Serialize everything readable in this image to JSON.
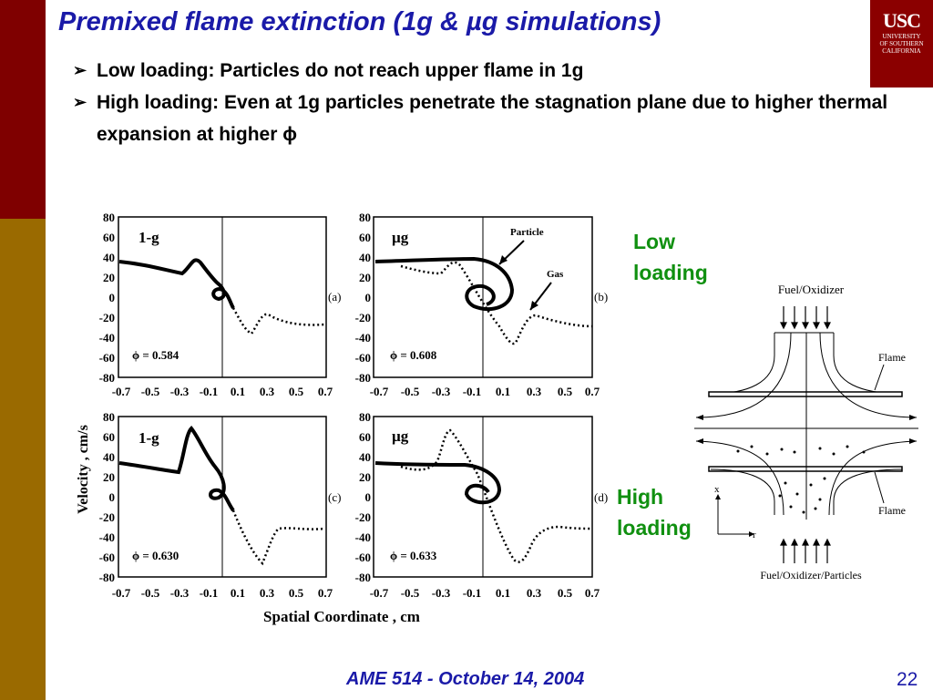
{
  "slide": {
    "title": "Premixed flame extinction (1g & µg simulations)",
    "bullets": [
      "Low loading: Particles do not reach upper flame in 1g",
      "High loading: Even at 1g particles penetrate the stagnation plane due to higher thermal expansion at higher ϕ"
    ],
    "low_loading": "Low loading",
    "high_loading": "High loading",
    "footer": "AME 514 - October 14, 2004",
    "page_number": "22",
    "colors": {
      "title": "#1a1aa8",
      "sidebar_top": "#7f0000",
      "sidebar_bottom": "#9a6a00",
      "labels": "#109010"
    }
  },
  "logo": {
    "text": "USC",
    "line1": "UNIVERSITY",
    "line2": "OF SOUTHERN",
    "line3": "CALIFORNIA"
  },
  "figure": {
    "ylabel": "Velocity , cm/s",
    "xlabel": "Spatial Coordinate , cm",
    "yticks": [
      "80",
      "60",
      "40",
      "20",
      "0",
      "-20",
      "-40",
      "-60",
      "-80"
    ],
    "xticks": [
      "-0.7",
      "-0.5",
      "-0.3",
      "-0.1",
      "0.1",
      "0.3",
      "0.5",
      "0.7"
    ],
    "panels": [
      {
        "tag": "1-g",
        "phi": "ϕ = 0.584",
        "letter": "(a)"
      },
      {
        "tag": "µg",
        "phi": "ϕ = 0.608",
        "letter": "(b)",
        "particle": "Particle",
        "gas": "Gas"
      },
      {
        "tag": "1-g",
        "phi": "ϕ = 0.630",
        "letter": "(c)"
      },
      {
        "tag": "µg",
        "phi": "ϕ = 0.633",
        "letter": "(d)"
      }
    ]
  },
  "diagram": {
    "top_label": "Fuel/Oxidizer",
    "flame_top": "Flame",
    "flame_bottom": "Flame",
    "bottom_label": "Fuel/Oxidizer/Particles",
    "axis_x": "x",
    "axis_r": "r"
  }
}
